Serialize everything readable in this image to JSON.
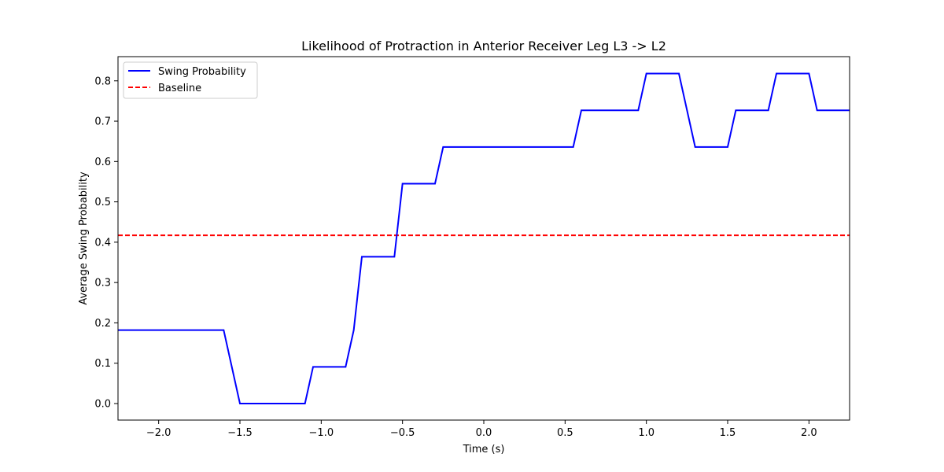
{
  "chart_data": {
    "type": "line",
    "title": "Likelihood of Protraction in Anterior Receiver Leg L3 -> L2",
    "xlabel": "Time (s)",
    "ylabel": "Average Swing Probability",
    "xlim": [
      -2.25,
      2.25
    ],
    "ylim": [
      -0.041,
      0.86
    ],
    "x_ticks": [
      -2.0,
      -1.5,
      -1.0,
      -0.5,
      0.0,
      0.5,
      1.0,
      1.5,
      2.0
    ],
    "x_tick_labels": [
      "−2.0",
      "−1.5",
      "−1.0",
      "−0.5",
      "0.0",
      "0.5",
      "1.0",
      "1.5",
      "2.0"
    ],
    "y_ticks": [
      0.0,
      0.1,
      0.2,
      0.3,
      0.4,
      0.5,
      0.6,
      0.7,
      0.8
    ],
    "y_tick_labels": [
      "0.0",
      "0.1",
      "0.2",
      "0.3",
      "0.4",
      "0.5",
      "0.6",
      "0.7",
      "0.8"
    ],
    "grid": false,
    "legend_position": "upper-left",
    "series": [
      {
        "name": "Swing Probability",
        "color": "#0000ff",
        "style": "solid",
        "x": [
          -2.25,
          -1.6,
          -1.5,
          -1.1,
          -1.05,
          -0.85,
          -0.8,
          -0.75,
          -0.55,
          -0.5,
          -0.3,
          -0.25,
          0.55,
          0.6,
          0.95,
          1.0,
          1.2,
          1.3,
          1.5,
          1.55,
          1.75,
          1.8,
          2.0,
          2.05,
          2.25
        ],
        "y": [
          0.182,
          0.182,
          0.0,
          0.0,
          0.091,
          0.091,
          0.182,
          0.364,
          0.364,
          0.545,
          0.545,
          0.636,
          0.636,
          0.727,
          0.727,
          0.818,
          0.818,
          0.636,
          0.636,
          0.727,
          0.727,
          0.818,
          0.818,
          0.727,
          0.727
        ]
      },
      {
        "name": "Baseline",
        "color": "#ff0000",
        "style": "dashed",
        "y_constant": 0.417
      }
    ]
  }
}
